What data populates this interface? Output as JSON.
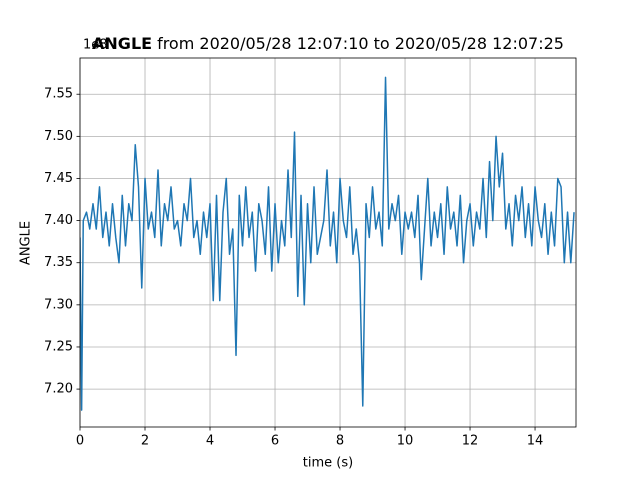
{
  "chart_data": {
    "type": "line",
    "title_bold": "ANGLE",
    "title": "from 2020/05/28 12:07:10 to 2020/05/28 12:07:25",
    "x_label": "time (s)",
    "y_label": "ANGLE",
    "offset_text": "1e8",
    "grid": true,
    "xlim": [
      0,
      15.26
    ],
    "ylim": [
      7.155,
      7.593
    ],
    "xticks": [
      0,
      2,
      4,
      6,
      8,
      10,
      12,
      14
    ],
    "yticks": [
      {
        "value": 7.2,
        "label": "7.20"
      },
      7.25,
      {
        "value": 7.3,
        "label": "7.30"
      },
      7.35,
      {
        "value": 7.4,
        "label": "7.40"
      },
      7.45,
      {
        "value": 7.5,
        "label": "7.50"
      },
      7.55
    ],
    "x": [
      0,
      0.05,
      0.1,
      0.2,
      0.3,
      0.4,
      0.5,
      0.6,
      0.7,
      0.8,
      0.9,
      1.0,
      1.1,
      1.2,
      1.3,
      1.4,
      1.5,
      1.6,
      1.7,
      1.8,
      1.9,
      2.0,
      2.1,
      2.2,
      2.3,
      2.4,
      2.5,
      2.6,
      2.7,
      2.8,
      2.9,
      3.0,
      3.1,
      3.2,
      3.3,
      3.4,
      3.5,
      3.6,
      3.7,
      3.8,
      3.9,
      4.0,
      4.1,
      4.2,
      4.3,
      4.4,
      4.5,
      4.6,
      4.7,
      4.8,
      4.9,
      5.0,
      5.1,
      5.2,
      5.3,
      5.4,
      5.5,
      5.6,
      5.7,
      5.8,
      5.9,
      6.0,
      6.1,
      6.2,
      6.3,
      6.4,
      6.5,
      6.6,
      6.7,
      6.8,
      6.9,
      7.0,
      7.1,
      7.2,
      7.3,
      7.4,
      7.5,
      7.6,
      7.7,
      7.8,
      7.9,
      8.0,
      8.1,
      8.2,
      8.3,
      8.4,
      8.5,
      8.6,
      8.7,
      8.8,
      8.9,
      9.0,
      9.1,
      9.2,
      9.3,
      9.4,
      9.5,
      9.6,
      9.7,
      9.8,
      9.9,
      10.0,
      10.1,
      10.2,
      10.3,
      10.4,
      10.5,
      10.6,
      10.7,
      10.8,
      10.9,
      11.0,
      11.1,
      11.2,
      11.3,
      11.4,
      11.5,
      11.6,
      11.7,
      11.8,
      11.9,
      12.0,
      12.1,
      12.2,
      12.3,
      12.4,
      12.5,
      12.6,
      12.7,
      12.8,
      12.9,
      13.0,
      13.1,
      13.2,
      13.3,
      13.4,
      13.5,
      13.6,
      13.7,
      13.8,
      13.9,
      14.0,
      14.1,
      14.2,
      14.3,
      14.4,
      14.5,
      14.6,
      14.7,
      14.8,
      14.9,
      15.0,
      15.1,
      15.2
    ],
    "series": [
      {
        "color": "#1f77b4",
        "values": [
          7.38,
          7.175,
          7.4,
          7.41,
          7.39,
          7.42,
          7.39,
          7.44,
          7.38,
          7.41,
          7.37,
          7.42,
          7.38,
          7.35,
          7.43,
          7.37,
          7.42,
          7.4,
          7.49,
          7.44,
          7.32,
          7.45,
          7.39,
          7.41,
          7.38,
          7.46,
          7.37,
          7.42,
          7.4,
          7.44,
          7.39,
          7.4,
          7.37,
          7.42,
          7.4,
          7.45,
          7.38,
          7.4,
          7.36,
          7.41,
          7.38,
          7.42,
          7.305,
          7.43,
          7.305,
          7.41,
          7.45,
          7.36,
          7.39,
          7.24,
          7.43,
          7.37,
          7.44,
          7.38,
          7.41,
          7.34,
          7.42,
          7.4,
          7.36,
          7.44,
          7.34,
          7.42,
          7.35,
          7.4,
          7.37,
          7.46,
          7.38,
          7.505,
          7.31,
          7.43,
          7.3,
          7.42,
          7.35,
          7.44,
          7.36,
          7.38,
          7.4,
          7.46,
          7.37,
          7.41,
          7.35,
          7.45,
          7.4,
          7.38,
          7.44,
          7.36,
          7.39,
          7.35,
          7.18,
          7.42,
          7.38,
          7.44,
          7.39,
          7.41,
          7.37,
          7.57,
          7.39,
          7.42,
          7.4,
          7.43,
          7.36,
          7.41,
          7.39,
          7.41,
          7.38,
          7.43,
          7.33,
          7.39,
          7.45,
          7.37,
          7.41,
          7.38,
          7.42,
          7.36,
          7.44,
          7.39,
          7.41,
          7.37,
          7.43,
          7.35,
          7.4,
          7.42,
          7.37,
          7.41,
          7.39,
          7.45,
          7.38,
          7.47,
          7.4,
          7.5,
          7.44,
          7.48,
          7.39,
          7.42,
          7.37,
          7.43,
          7.4,
          7.44,
          7.38,
          7.42,
          7.37,
          7.44,
          7.4,
          7.38,
          7.42,
          7.36,
          7.41,
          7.37,
          7.45,
          7.44,
          7.35,
          7.41,
          7.35,
          7.41
        ]
      }
    ]
  }
}
